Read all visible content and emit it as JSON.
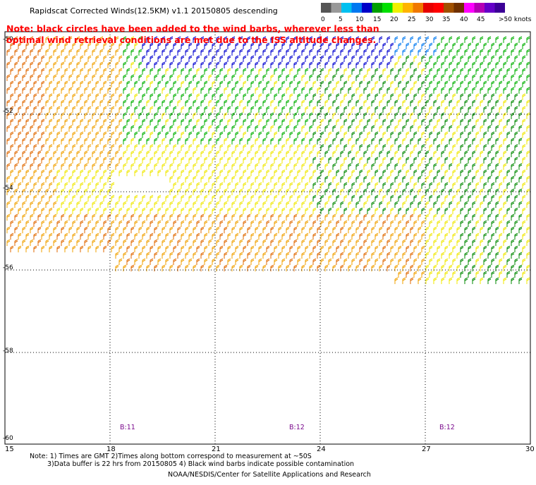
{
  "title": "Rapidscat Corrected Winds(12.5KM) v1.1 20150805 descending",
  "note": {
    "line1": "Note: black circles have been added to the wind barbs, wherever less than",
    "line2": "optimal wind retrieval conditions are met due to the ISS altitude changes."
  },
  "legend": {
    "labels": [
      "0",
      "5",
      "10",
      "15",
      "20",
      "25",
      "30",
      "35",
      "40",
      "45",
      ">50 knots"
    ],
    "colors": [
      "#555555",
      "#999999",
      "#00c0f0",
      "#0078f0",
      "#0000c8",
      "#00a000",
      "#00e000",
      "#f0f000",
      "#ffb400",
      "#f07800",
      "#e60000",
      "#ff0000",
      "#a05000",
      "#703000",
      "#ff00ff",
      "#b400b4",
      "#6400c8",
      "#3c0096"
    ]
  },
  "axes": {
    "lon_ticks": [
      "15",
      "18",
      "21",
      "24",
      "27",
      "30"
    ],
    "lat_ticks": [
      "-50",
      "-52",
      "-54",
      "-56",
      "-58",
      "-60"
    ]
  },
  "buffers": [
    "B:11",
    "B:12",
    "B:12"
  ],
  "footer": {
    "line1": "Note: 1) Times are GMT 2)Times along bottom correspond to measurement at ~50S",
    "line2": "3)Data buffer is 22 hrs from 20150805 4) Black wind barbs indicate possible contamination",
    "line3": "NOAA/NESDIS/Center for Satellite Applications and Research"
  }
}
